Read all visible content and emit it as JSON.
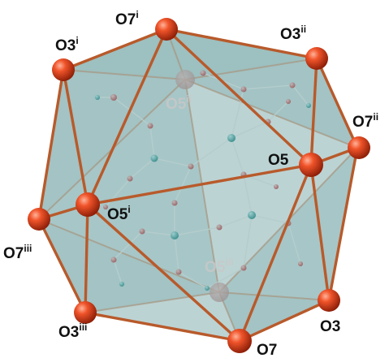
{
  "labels": [
    {
      "id": "O7i",
      "base": "O7",
      "sup": "i"
    },
    {
      "id": "O3ii",
      "base": "O3",
      "sup": "ii"
    },
    {
      "id": "O3i",
      "base": "O3",
      "sup": "i"
    },
    {
      "id": "O5ii",
      "base": "O5",
      "sup": "ii"
    },
    {
      "id": "O7ii",
      "base": "O7",
      "sup": "ii"
    },
    {
      "id": "O5",
      "base": "O5",
      "sup": ""
    },
    {
      "id": "O5i",
      "base": "O5",
      "sup": "i"
    },
    {
      "id": "O7iii",
      "base": "O7",
      "sup": "iii"
    },
    {
      "id": "O5iii",
      "base": "O5",
      "sup": "iii"
    },
    {
      "id": "O3iii",
      "base": "O3",
      "sup": "iii"
    },
    {
      "id": "O3",
      "base": "O3",
      "sup": ""
    },
    {
      "id": "O7",
      "base": "O7",
      "sup": ""
    }
  ],
  "colors": {
    "face": "#6f9ea0",
    "edge": "#c2612f",
    "atom": "#e2401c",
    "inner_oxygen": "#d86a6a",
    "inner_cyan": "#4fb3b3",
    "bond": "#f2f2f2",
    "label": "#111111"
  }
}
